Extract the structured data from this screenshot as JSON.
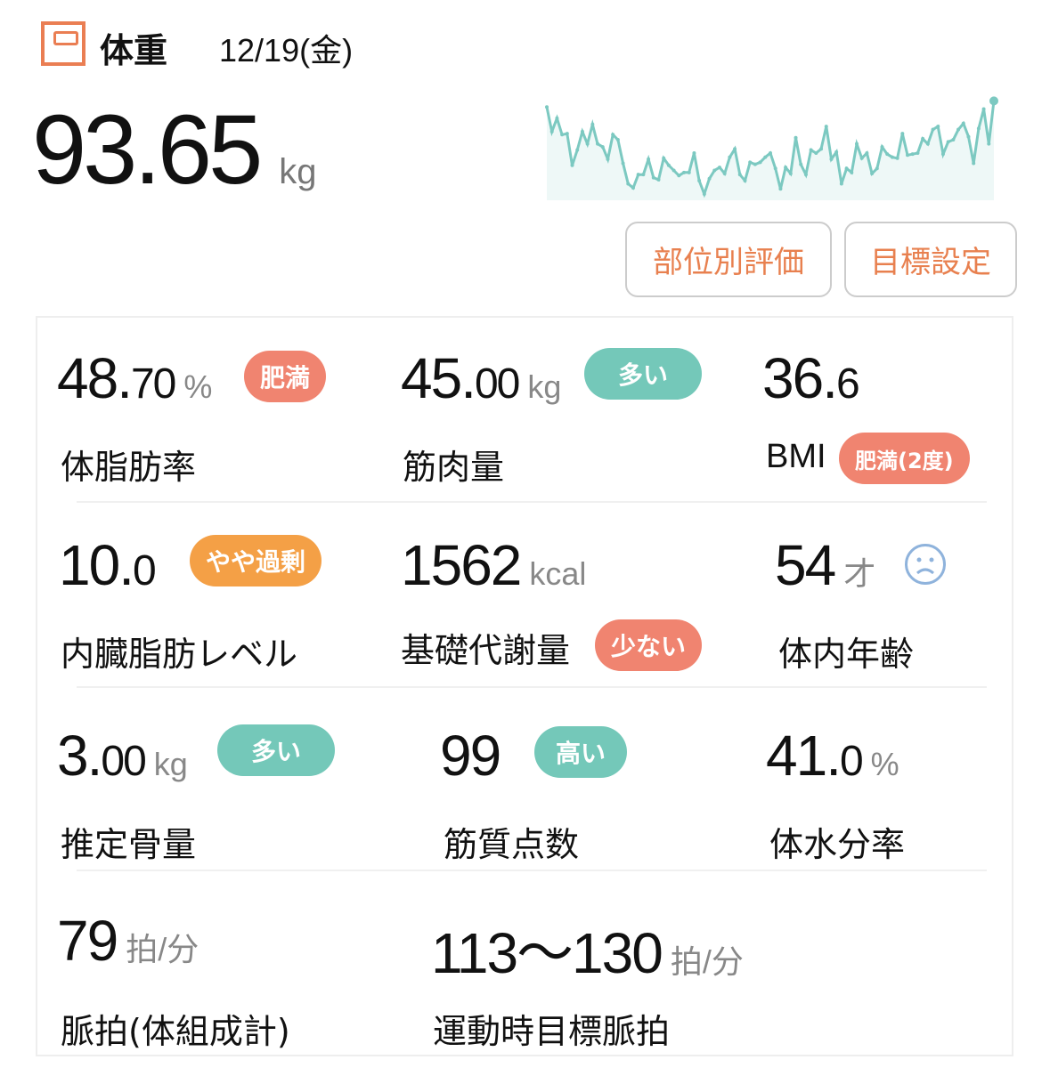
{
  "header": {
    "icon": "scale-icon",
    "title": "体重",
    "date": "12/19(金)"
  },
  "weight": {
    "value": "93.65",
    "unit": "kg"
  },
  "sparkline": {
    "type": "line",
    "color": "#7cc9c1",
    "trend_relative": [
      85,
      61,
      74,
      58,
      59,
      28,
      43,
      61,
      49,
      68,
      49,
      46,
      34,
      58,
      53,
      30,
      10,
      6,
      19,
      19,
      34,
      16,
      14,
      35,
      28,
      23,
      18,
      21,
      21,
      40,
      13,
      0,
      15,
      23,
      26,
      20,
      36,
      44,
      19,
      13,
      31,
      29,
      31,
      36,
      40,
      25,
      5,
      26,
      20,
      55,
      29,
      19,
      43,
      40,
      44,
      66,
      34,
      41,
      10,
      25,
      21,
      49,
      35,
      40,
      20,
      25,
      46,
      39,
      36,
      35,
      59,
      38,
      39,
      40,
      54,
      49,
      63,
      66,
      39,
      51,
      53,
      63,
      69,
      56,
      30,
      64,
      83,
      49,
      91
    ]
  },
  "buttons": {
    "part_eval": "部位別評価",
    "goal": "目標設定"
  },
  "colors": {
    "accent": "#e8804f",
    "obese": "#f08470",
    "many": "#74c8b9",
    "slightly": "#f4a046",
    "line": "#7cc9c1"
  },
  "metrics": {
    "body_fat": {
      "int": "48.",
      "dec": "70",
      "unit": "%",
      "label": "体脂肪率",
      "badge": "肥満"
    },
    "muscle": {
      "int": "45.",
      "dec": "00",
      "unit": "kg",
      "label": "筋肉量",
      "badge": "多い"
    },
    "bmi": {
      "int": "36.",
      "dec": "6",
      "label": "BMI",
      "badge": "肥満(2度)"
    },
    "visceral": {
      "int": "10.",
      "dec": "0",
      "label": "内臓脂肪レベル",
      "badge": "やや過剰"
    },
    "bmr": {
      "int": "1562",
      "unit": "kcal",
      "label": "基礎代謝量",
      "badge": "少ない"
    },
    "body_age": {
      "int": "54",
      "unit": "才",
      "label": "体内年齢",
      "icon": "sad-face-icon"
    },
    "bone": {
      "int": "3.",
      "dec": "00",
      "unit": "kg",
      "label": "推定骨量",
      "badge": "多い"
    },
    "muscle_quality": {
      "int": "99",
      "label": "筋質点数",
      "badge": "高い"
    },
    "water": {
      "int": "41.",
      "dec": "0",
      "unit": "%",
      "label": "体水分率"
    },
    "pulse": {
      "int": "79",
      "unit": "拍/分",
      "label": "脈拍(体組成計)"
    },
    "target_pulse": {
      "int": "113〜130",
      "unit": "拍/分",
      "label": "運動時目標脈拍"
    }
  }
}
